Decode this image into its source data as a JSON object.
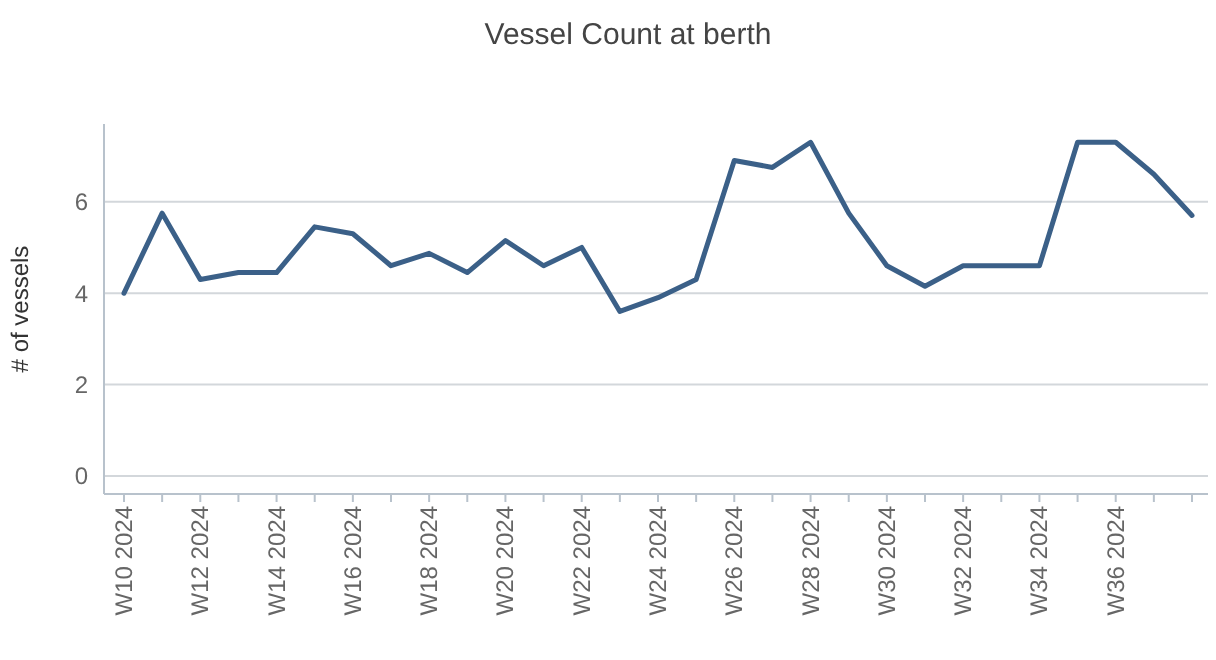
{
  "chart_data": {
    "type": "line",
    "title": "Vessel Count at berth",
    "ylabel": "# of vessels",
    "categories": [
      "W10 2024",
      null,
      "W12 2024",
      null,
      "W14 2024",
      null,
      "W16 2024",
      null,
      "W18 2024",
      null,
      "W20 2024",
      null,
      "W22 2024",
      null,
      "W24 2024",
      null,
      "W26 2024",
      null,
      "W28 2024",
      null,
      "W30 2024",
      null,
      "W32 2024",
      null,
      "W34 2024",
      null,
      "W36 2024",
      null,
      null
    ],
    "series": [
      {
        "color": "#3b6088",
        "values": [
          4.0,
          5.75,
          4.3,
          4.45,
          4.45,
          5.45,
          5.3,
          4.6,
          4.87,
          4.45,
          5.15,
          4.6,
          5.0,
          3.6,
          3.9,
          4.3,
          6.9,
          6.75,
          7.3,
          5.75,
          4.6,
          4.15,
          4.6,
          4.6,
          4.6,
          7.3,
          7.3,
          6.6,
          5.7
        ]
      }
    ],
    "ylim": [
      0,
      7.7
    ],
    "yticks": [
      0,
      2,
      4,
      6
    ],
    "grid": "y",
    "marker": "none",
    "line_style": "solid"
  }
}
